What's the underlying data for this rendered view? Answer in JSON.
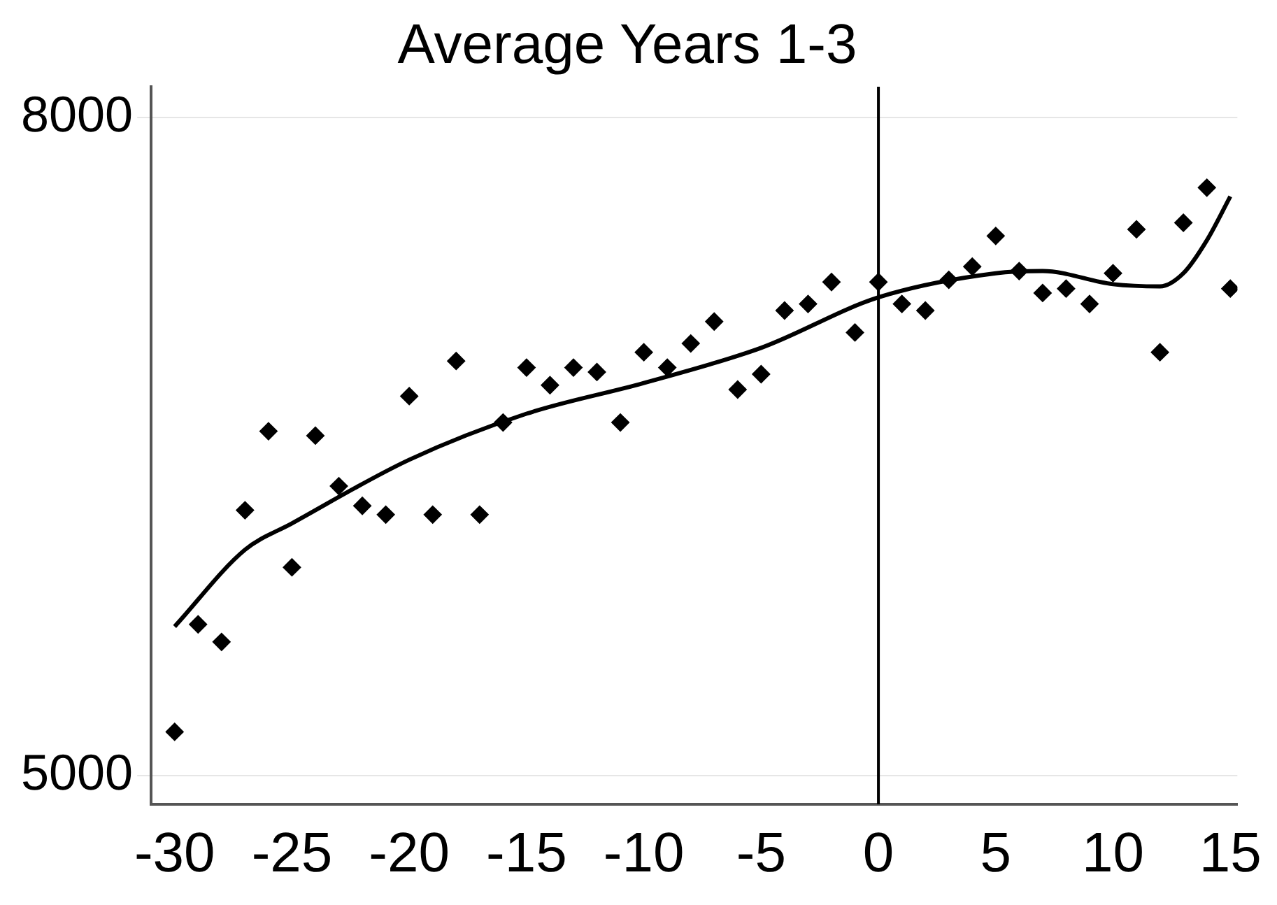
{
  "chart_data": {
    "type": "scatter",
    "title": "Average Years 1-3",
    "x": [
      -30,
      -29,
      -28,
      -27,
      -26,
      -25,
      -24,
      -23,
      -22,
      -21,
      -20,
      -19,
      -18,
      -17,
      -16,
      -15,
      -14,
      -13,
      -12,
      -11,
      -10,
      -9,
      -8,
      -7,
      -6,
      -5,
      -4,
      -3,
      -2,
      -1,
      0,
      1,
      2,
      3,
      4,
      5,
      6,
      7,
      8,
      9,
      10,
      11,
      12,
      13,
      14,
      15
    ],
    "series": [
      {
        "color": "#000000",
        "marker": "diamond",
        "values": [
          5200,
          5690,
          5610,
          6210,
          6570,
          5950,
          6550,
          6320,
          6230,
          6190,
          6730,
          6190,
          6890,
          6190,
          6610,
          6860,
          6780,
          6860,
          6840,
          6610,
          6930,
          6860,
          6970,
          7070,
          6760,
          6830,
          7120,
          7150,
          7250,
          7020,
          7250,
          7150,
          7120,
          7260,
          7320,
          7460,
          7300,
          7200,
          7220,
          7150,
          7290,
          7490,
          6930,
          7520,
          7680,
          7220
        ]
      },
      {
        "type": "line",
        "color": "#000000",
        "marker": "none",
        "x": [
          -30,
          -27,
          -25,
          -20,
          -15,
          -10,
          -5,
          0,
          5,
          7,
          10,
          12,
          13,
          14,
          15
        ],
        "values": [
          5680,
          6030,
          6150,
          6440,
          6650,
          6790,
          6950,
          7180,
          7290,
          7300,
          7240,
          7230,
          7290,
          7440,
          7640
        ]
      }
    ],
    "xlim": [
      -31,
      15.3
    ],
    "xticks": [
      -30,
      -25,
      -20,
      -15,
      -10,
      -5,
      0,
      5,
      10,
      15
    ],
    "ylim": [
      4870,
      8140
    ],
    "yticks": [
      5000,
      8000
    ],
    "grid": "y",
    "legend": false,
    "ref_lines": [
      {
        "axis": "x",
        "value": 0,
        "color": "#000000"
      }
    ]
  }
}
